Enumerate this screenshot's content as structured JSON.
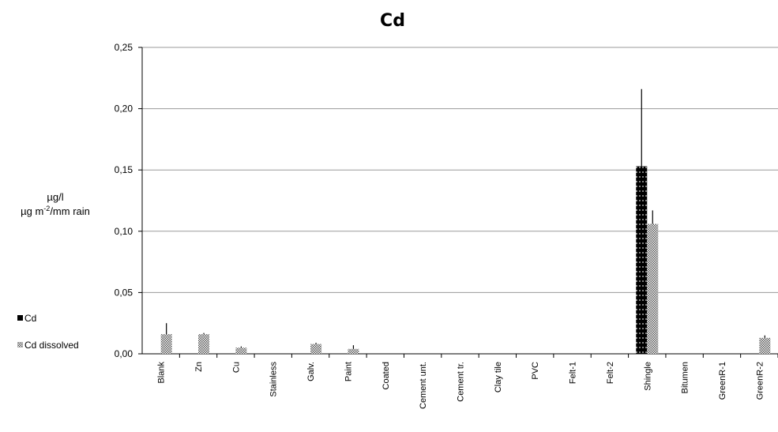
{
  "chart_data": {
    "type": "bar",
    "title": "Cd",
    "ylabel_line1": "µg/l",
    "ylabel_line2_pre": "µg m",
    "ylabel_line2_sup": "-2",
    "ylabel_line2_post": "/mm rain",
    "ylim": [
      0,
      0.25
    ],
    "yticks": [
      "0,00",
      "0,05",
      "0,10",
      "0,15",
      "0,20",
      "0,25"
    ],
    "ytick_values": [
      0,
      0.05,
      0.1,
      0.15,
      0.2,
      0.25
    ],
    "grid": true,
    "legend_position": "left",
    "categories": [
      "Blank",
      "Zn",
      "Cu",
      "Stainless",
      "Galv.",
      "Paint",
      "Coated",
      "Cement unt.",
      "Cement tr.",
      "Clay tile",
      "PVC",
      "Felt-1",
      "Felt-2",
      "Shingle",
      "Bitumen",
      "GreenR-1",
      "GreenR-2"
    ],
    "series": [
      {
        "name": "Cd",
        "color": "#000000",
        "values": [
          0,
          0,
          0,
          0,
          0,
          0,
          0,
          0,
          0,
          0,
          0,
          0,
          0,
          0.153,
          0,
          0,
          0
        ],
        "errors": [
          0,
          0,
          0,
          0,
          0,
          0,
          0,
          0,
          0,
          0,
          0,
          0,
          0,
          0.063,
          0,
          0,
          0
        ]
      },
      {
        "name": "Cd dissolved",
        "color": "#8c8c8c",
        "values": [
          0.016,
          0.016,
          0.005,
          0,
          0.008,
          0.004,
          0,
          0,
          0,
          0,
          0,
          0,
          0,
          0.106,
          0,
          0,
          0.013
        ],
        "errors": [
          0.009,
          0.001,
          0.001,
          0,
          0.001,
          0.003,
          0,
          0,
          0,
          0,
          0,
          0,
          0,
          0.011,
          0,
          0,
          0.002
        ]
      }
    ]
  }
}
